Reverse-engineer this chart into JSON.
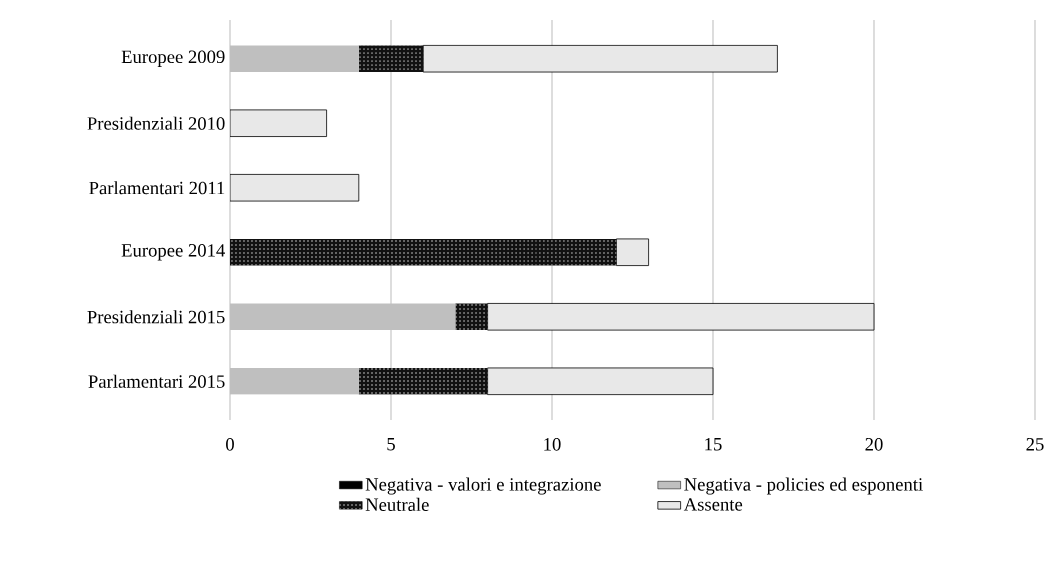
{
  "chart_data": {
    "type": "bar",
    "orientation": "horizontal",
    "stacked": true,
    "categories": [
      "Europee 2009",
      "Presidenziali 2010",
      "Parlamentari 2011",
      "Europee 2014",
      "Presidenziali 2015",
      "Parlamentari 2015"
    ],
    "series": [
      {
        "name": "Negativa - valori e integrazione",
        "color": "#000000",
        "values": [
          0,
          0,
          0,
          0,
          0,
          0
        ]
      },
      {
        "name": "Negativa - policies ed esponenti",
        "color": "#bfbfbf",
        "values": [
          4,
          0,
          0,
          0,
          7,
          4
        ]
      },
      {
        "name": "Neutrale",
        "color": "#111111",
        "values": [
          2,
          0,
          0,
          12,
          1,
          4
        ]
      },
      {
        "name": "Assente",
        "color": "#e8e8e8",
        "values": [
          11,
          3,
          4,
          1,
          12,
          7
        ]
      }
    ],
    "xlim": [
      0,
      25
    ],
    "xticks": [
      0,
      5,
      10,
      15,
      20,
      25
    ],
    "grid": "x",
    "legend": "bottom"
  }
}
